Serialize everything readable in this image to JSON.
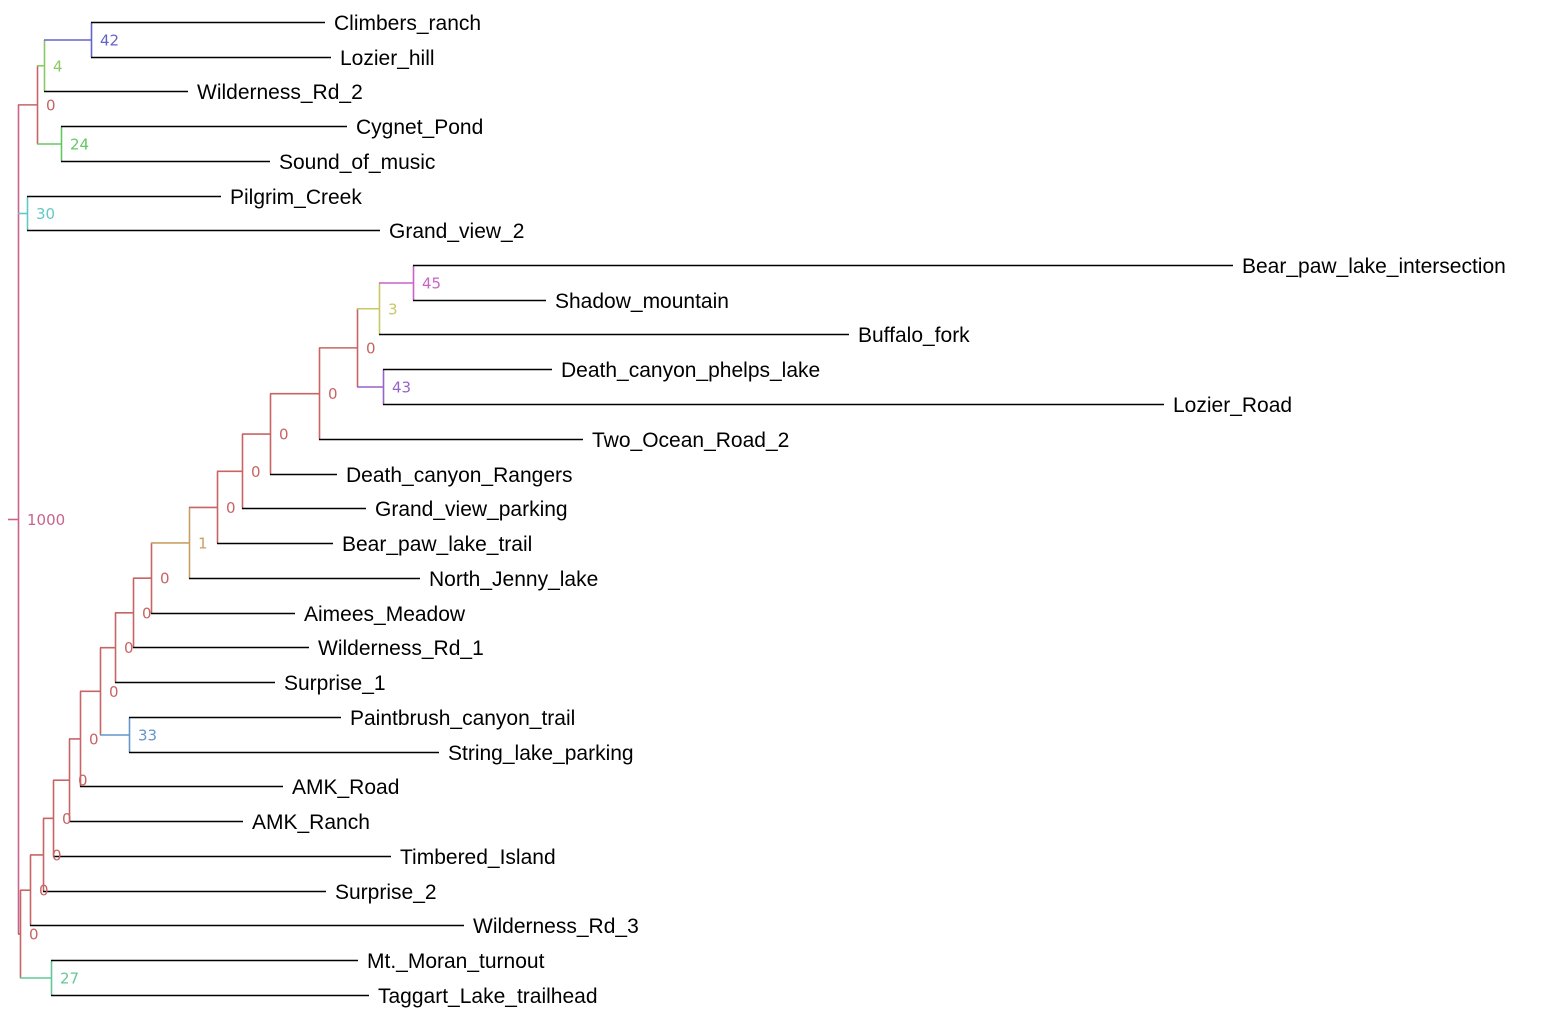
{
  "tree": {
    "colors": {
      "leaf_branch": "#000000",
      "c1000": "#c8648c",
      "c0": "#c86464",
      "c42": "#6464c8",
      "c4": "#8cc864",
      "c24": "#64c864",
      "c30": "#64c8c8",
      "c45": "#c864c8",
      "c3": "#c8c864",
      "c43": "#9664c8",
      "c1": "#c8a064",
      "c33": "#6496c8",
      "c27": "#64c896"
    },
    "nodes": [
      {
        "id": "n_root",
        "support": "1000",
        "color": "c1000"
      },
      {
        "id": "n_top0",
        "support": "0",
        "color": "c0"
      },
      {
        "id": "n_4",
        "support": "4",
        "color": "c4"
      },
      {
        "id": "n_42",
        "support": "42",
        "color": "c42"
      },
      {
        "id": "n_24",
        "support": "24",
        "color": "c24"
      },
      {
        "id": "n_30",
        "support": "30",
        "color": "c30"
      },
      {
        "id": "n_bot0",
        "support": "0",
        "color": "c0"
      },
      {
        "id": "n_27",
        "support": "27",
        "color": "c27"
      },
      {
        "id": "n_w3",
        "support": "0",
        "color": "c0"
      },
      {
        "id": "n_s2",
        "support": "0",
        "color": "c0"
      },
      {
        "id": "n_ti",
        "support": "0",
        "color": "c0"
      },
      {
        "id": "n_amkr",
        "support": "0",
        "color": "c0"
      },
      {
        "id": "n_amkroad",
        "support": "0",
        "color": "c0"
      },
      {
        "id": "n_bigA",
        "support": "0",
        "color": "c0"
      },
      {
        "id": "n_33",
        "support": "33",
        "color": "c33"
      },
      {
        "id": "n_s1",
        "support": "0",
        "color": "c0"
      },
      {
        "id": "n_w1",
        "support": "0",
        "color": "c0"
      },
      {
        "id": "n_aim",
        "support": "0",
        "color": "c0"
      },
      {
        "id": "n_1",
        "support": "1",
        "color": "c1"
      },
      {
        "id": "n_bpt",
        "support": "0",
        "color": "c0"
      },
      {
        "id": "n_gvp",
        "support": "0",
        "color": "c0"
      },
      {
        "id": "n_dcr",
        "support": "0",
        "color": "c0"
      },
      {
        "id": "n_tor",
        "support": "0",
        "color": "c0"
      },
      {
        "id": "n_d",
        "support": "0",
        "color": "c0"
      },
      {
        "id": "n_3",
        "support": "3",
        "color": "c3"
      },
      {
        "id": "n_45",
        "support": "45",
        "color": "c45"
      },
      {
        "id": "n_43",
        "support": "43",
        "color": "c43"
      }
    ],
    "leaves": [
      {
        "id": "l_climbers",
        "label": "Climbers_ranch"
      },
      {
        "id": "l_lozierhill",
        "label": "Lozier_hill"
      },
      {
        "id": "l_wild2",
        "label": "Wilderness_Rd_2"
      },
      {
        "id": "l_cygnet",
        "label": "Cygnet_Pond"
      },
      {
        "id": "l_sound",
        "label": "Sound_of_music"
      },
      {
        "id": "l_pilgrim",
        "label": "Pilgrim_Creek"
      },
      {
        "id": "l_grandview2",
        "label": "Grand_view_2"
      },
      {
        "id": "l_bearpawint",
        "label": "Bear_paw_lake_intersection"
      },
      {
        "id": "l_shadow",
        "label": "Shadow_mountain"
      },
      {
        "id": "l_buffalo",
        "label": "Buffalo_fork"
      },
      {
        "id": "l_dcphelps",
        "label": "Death_canyon_phelps_lake"
      },
      {
        "id": "l_lozierroad",
        "label": "Lozier_Road"
      },
      {
        "id": "l_twoocean",
        "label": "Two_Ocean_Road_2"
      },
      {
        "id": "l_dcrangers",
        "label": "Death_canyon_Rangers"
      },
      {
        "id": "l_gvparking",
        "label": "Grand_view_parking"
      },
      {
        "id": "l_bearpawtrail",
        "label": "Bear_paw_lake_trail"
      },
      {
        "id": "l_northjenny",
        "label": "North_Jenny_lake"
      },
      {
        "id": "l_aimees",
        "label": "Aimees_Meadow"
      },
      {
        "id": "l_wild1",
        "label": "Wilderness_Rd_1"
      },
      {
        "id": "l_surprise1",
        "label": "Surprise_1"
      },
      {
        "id": "l_paintbrush",
        "label": "Paintbrush_canyon_trail"
      },
      {
        "id": "l_stringlake",
        "label": "String_lake_parking"
      },
      {
        "id": "l_amkroad",
        "label": "AMK_Road"
      },
      {
        "id": "l_amkranch",
        "label": "AMK_Ranch"
      },
      {
        "id": "l_timbered",
        "label": "Timbered_Island"
      },
      {
        "id": "l_surprise2",
        "label": "Surprise_2"
      },
      {
        "id": "l_wild3",
        "label": "Wilderness_Rd_3"
      },
      {
        "id": "l_moran",
        "label": "Mt._Moran_turnout"
      },
      {
        "id": "l_taggart",
        "label": "Taggart_Lake_trailhead"
      }
    ]
  }
}
